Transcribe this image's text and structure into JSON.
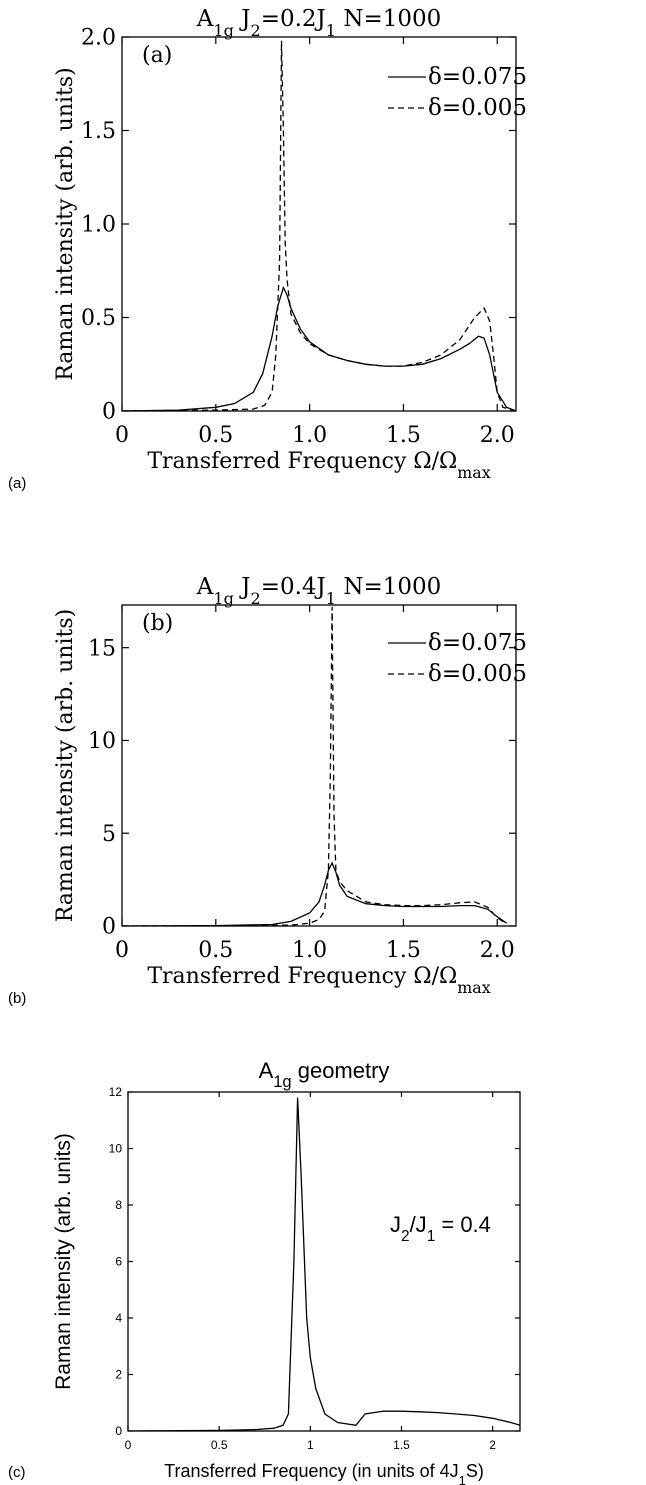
{
  "chart_data": [
    {
      "type": "line",
      "panel_label": "(a)",
      "side_label": "(a)",
      "title": "A1g J2=0.2J1 N=1000",
      "title_parts": {
        "a": "A",
        "a_sub": "1g",
        "j2": "J",
        "j2_sub": "2",
        "eq": "=0.2J",
        "j1_sub": "1",
        "n": "N=1000"
      },
      "xlabel_parts": {
        "main": "Transferred Frequency Ω/Ω",
        "sub": "max"
      },
      "ylabel": "Raman intensity (arb. units)",
      "xlim": [
        0,
        2.1
      ],
      "ylim": [
        0,
        2.0
      ],
      "xticks": [
        0,
        0.5,
        1.0,
        1.5,
        2.0
      ],
      "xtick_labels": [
        "0",
        "0.5",
        "1.0",
        "1.5",
        "2.0"
      ],
      "yticks": [
        0,
        0.5,
        1.0,
        1.5,
        2.0
      ],
      "ytick_labels": [
        "0",
        "0.5",
        "1.0",
        "1.5",
        "2.0"
      ],
      "legend_position": "top-right",
      "series": [
        {
          "name": "δ=0.075",
          "style": "solid",
          "x": [
            0,
            0.3,
            0.5,
            0.6,
            0.7,
            0.75,
            0.8,
            0.83,
            0.86,
            0.88,
            0.9,
            0.95,
            1.0,
            1.1,
            1.2,
            1.3,
            1.4,
            1.5,
            1.6,
            1.7,
            1.8,
            1.85,
            1.9,
            1.93,
            1.96,
            2.0,
            2.05,
            2.1
          ],
          "y": [
            0,
            0.005,
            0.02,
            0.04,
            0.1,
            0.2,
            0.4,
            0.56,
            0.66,
            0.62,
            0.55,
            0.44,
            0.37,
            0.3,
            0.27,
            0.25,
            0.24,
            0.24,
            0.25,
            0.28,
            0.33,
            0.36,
            0.4,
            0.39,
            0.3,
            0.1,
            0.02,
            0.0
          ]
        },
        {
          "name": "δ=0.005",
          "style": "dashed",
          "x": [
            0,
            0.5,
            0.7,
            0.76,
            0.8,
            0.82,
            0.84,
            0.85,
            0.86,
            0.87,
            0.88,
            0.9,
            0.95,
            1.0,
            1.1,
            1.2,
            1.3,
            1.4,
            1.5,
            1.6,
            1.7,
            1.8,
            1.88,
            1.93,
            1.96,
            1.98,
            2.0,
            2.03,
            2.1
          ],
          "y": [
            0,
            0.005,
            0.01,
            0.03,
            0.1,
            0.3,
            0.8,
            1.98,
            1.5,
            0.9,
            0.7,
            0.52,
            0.42,
            0.36,
            0.3,
            0.27,
            0.25,
            0.24,
            0.24,
            0.26,
            0.3,
            0.38,
            0.5,
            0.55,
            0.48,
            0.3,
            0.1,
            0.02,
            0.0
          ]
        }
      ]
    },
    {
      "type": "line",
      "panel_label": "(b)",
      "side_label": "(b)",
      "title": "A1g J2=0.4J1 N=1000",
      "title_parts": {
        "a": "A",
        "a_sub": "1g",
        "j2": "J",
        "j2_sub": "2",
        "eq": "=0.4J",
        "j1_sub": "1",
        "n": "N=1000"
      },
      "xlabel_parts": {
        "main": "Transferred Frequency Ω/Ω",
        "sub": "max"
      },
      "ylabel": "Raman intensity (arb. units)",
      "xlim": [
        0,
        2.1
      ],
      "ylim": [
        0,
        17.3
      ],
      "xticks": [
        0,
        0.5,
        1.0,
        1.5,
        2.0
      ],
      "xtick_labels": [
        "0",
        "0.5",
        "1.0",
        "1.5",
        "2.0"
      ],
      "yticks": [
        0,
        5,
        10,
        15
      ],
      "ytick_labels": [
        "0",
        "5",
        "10",
        "15"
      ],
      "legend_position": "top-right",
      "series": [
        {
          "name": "δ=0.075",
          "style": "solid",
          "x": [
            0,
            0.5,
            0.8,
            0.9,
            1.0,
            1.05,
            1.08,
            1.1,
            1.12,
            1.14,
            1.16,
            1.2,
            1.3,
            1.4,
            1.5,
            1.6,
            1.7,
            1.8,
            1.88,
            1.95,
            2.0,
            2.05
          ],
          "y": [
            0,
            0.02,
            0.08,
            0.25,
            0.7,
            1.3,
            2.2,
            3.0,
            3.4,
            2.9,
            2.2,
            1.6,
            1.2,
            1.1,
            1.05,
            1.05,
            1.05,
            1.1,
            1.1,
            0.9,
            0.5,
            0.15
          ]
        },
        {
          "name": "δ=0.005",
          "style": "dashed",
          "x": [
            0,
            0.5,
            0.9,
            1.0,
            1.05,
            1.08,
            1.1,
            1.11,
            1.12,
            1.13,
            1.14,
            1.16,
            1.2,
            1.3,
            1.4,
            1.5,
            1.6,
            1.7,
            1.8,
            1.88,
            1.95,
            2.0,
            2.05
          ],
          "y": [
            0,
            0.01,
            0.05,
            0.15,
            0.35,
            0.8,
            3.0,
            8.0,
            17.2,
            6.0,
            3.0,
            2.4,
            1.9,
            1.3,
            1.15,
            1.1,
            1.1,
            1.15,
            1.25,
            1.3,
            1.0,
            0.45,
            0.12
          ]
        }
      ]
    },
    {
      "type": "line",
      "side_label": "(c)",
      "title": "A1g geometry",
      "title_parts": {
        "a": "A",
        "a_sub": "1g",
        "rest": " geometry"
      },
      "annotation_parts": {
        "a": "J",
        "a_sub": "2",
        "b": "/J",
        "b_sub": "1",
        "c": " = 0.4"
      },
      "xlabel_parts": {
        "main": "Transferred Frequency (in units of 4J",
        "sub": "1",
        "end": "S)"
      },
      "ylabel": "Raman intensity (arb. units)",
      "xlim": [
        0,
        2.15
      ],
      "ylim": [
        0,
        12
      ],
      "xticks": [
        0,
        0.5,
        1,
        1.5,
        2
      ],
      "xtick_labels": [
        "0",
        "0.5",
        "1",
        "1.5",
        "2"
      ],
      "yticks": [
        0,
        2,
        4,
        6,
        8,
        10,
        12
      ],
      "ytick_labels": [
        "0",
        "2",
        "4",
        "6",
        "8",
        "10",
        "12"
      ],
      "series": [
        {
          "x": [
            0,
            0.5,
            0.7,
            0.8,
            0.85,
            0.88,
            0.91,
            0.93,
            0.95,
            0.98,
            1.0,
            1.03,
            1.08,
            1.15,
            1.25,
            1.3,
            1.4,
            1.5,
            1.6,
            1.7,
            1.8,
            1.9,
            2.0,
            2.1,
            2.15
          ],
          "y": [
            0,
            0.02,
            0.05,
            0.1,
            0.2,
            0.6,
            6.0,
            11.8,
            9.0,
            4.0,
            2.6,
            1.5,
            0.6,
            0.3,
            0.2,
            0.6,
            0.7,
            0.7,
            0.68,
            0.65,
            0.6,
            0.55,
            0.45,
            0.3,
            0.2
          ]
        }
      ]
    }
  ]
}
